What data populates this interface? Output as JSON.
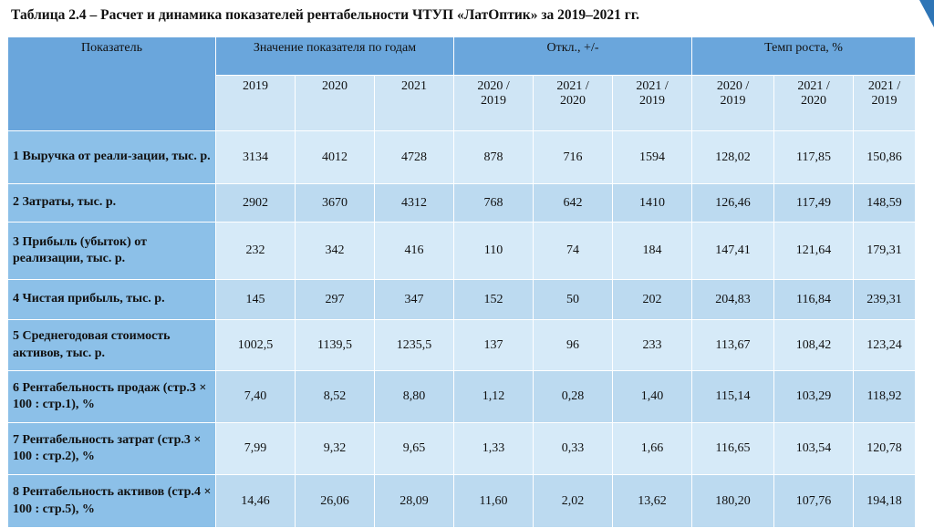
{
  "title": "Таблица 2.4 – Расчет и динамика показателей рентабельности ЧТУП «ЛатОптик» за 2019–2021 гг.",
  "table": {
    "header": {
      "indicator": "Показатель",
      "groups": [
        "Значение показателя по годам",
        "Откл., +/-",
        "Темп роста, %"
      ],
      "subheaders": [
        "2019",
        "2020",
        "2021",
        "2020 /\n2019",
        "2021 /\n2020",
        "2021 /\n2019",
        "2020 /\n2019",
        "2021 /\n2020",
        "2021 /\n2019"
      ]
    },
    "rows": [
      [
        "1 Выручка от реали-зации, тыс. р.",
        "3134",
        "4012",
        "4728",
        "878",
        "716",
        "1594",
        "128,02",
        "117,85",
        "150,86"
      ],
      [
        "2 Затраты, тыс. р.",
        "2902",
        "3670",
        "4312",
        "768",
        "642",
        "1410",
        "126,46",
        "117,49",
        "148,59"
      ],
      [
        "3 Прибыль (убыток) от реализации, тыс. р.",
        "232",
        "342",
        "416",
        "110",
        "74",
        "184",
        "147,41",
        "121,64",
        "179,31"
      ],
      [
        "4 Чистая прибыль, тыс. р.",
        "145",
        "297",
        "347",
        "152",
        "50",
        "202",
        "204,83",
        "116,84",
        "239,31"
      ],
      [
        "5 Среднегодовая стоимость активов, тыс. р.",
        "1002,5",
        "1139,5",
        "1235,5",
        "137",
        "96",
        "233",
        "113,67",
        "108,42",
        "123,24"
      ],
      [
        "6 Рентабельность продаж (стр.3 × 100 : стр.1), %",
        "7,40",
        "8,52",
        "8,80",
        "1,12",
        "0,28",
        "1,40",
        "115,14",
        "103,29",
        "118,92"
      ],
      [
        "7 Рентабельность затрат (стр.3 × 100 : стр.2), %",
        "7,99",
        "9,32",
        "9,65",
        "1,33",
        "0,33",
        "1,66",
        "116,65",
        "103,54",
        "120,78"
      ],
      [
        "8 Рентабельность активов (стр.4 × 100 : стр.5), %",
        "14,46",
        "26,06",
        "28,09",
        "11,60",
        "2,02",
        "13,62",
        "180,20",
        "107,76",
        "194,18"
      ]
    ]
  }
}
